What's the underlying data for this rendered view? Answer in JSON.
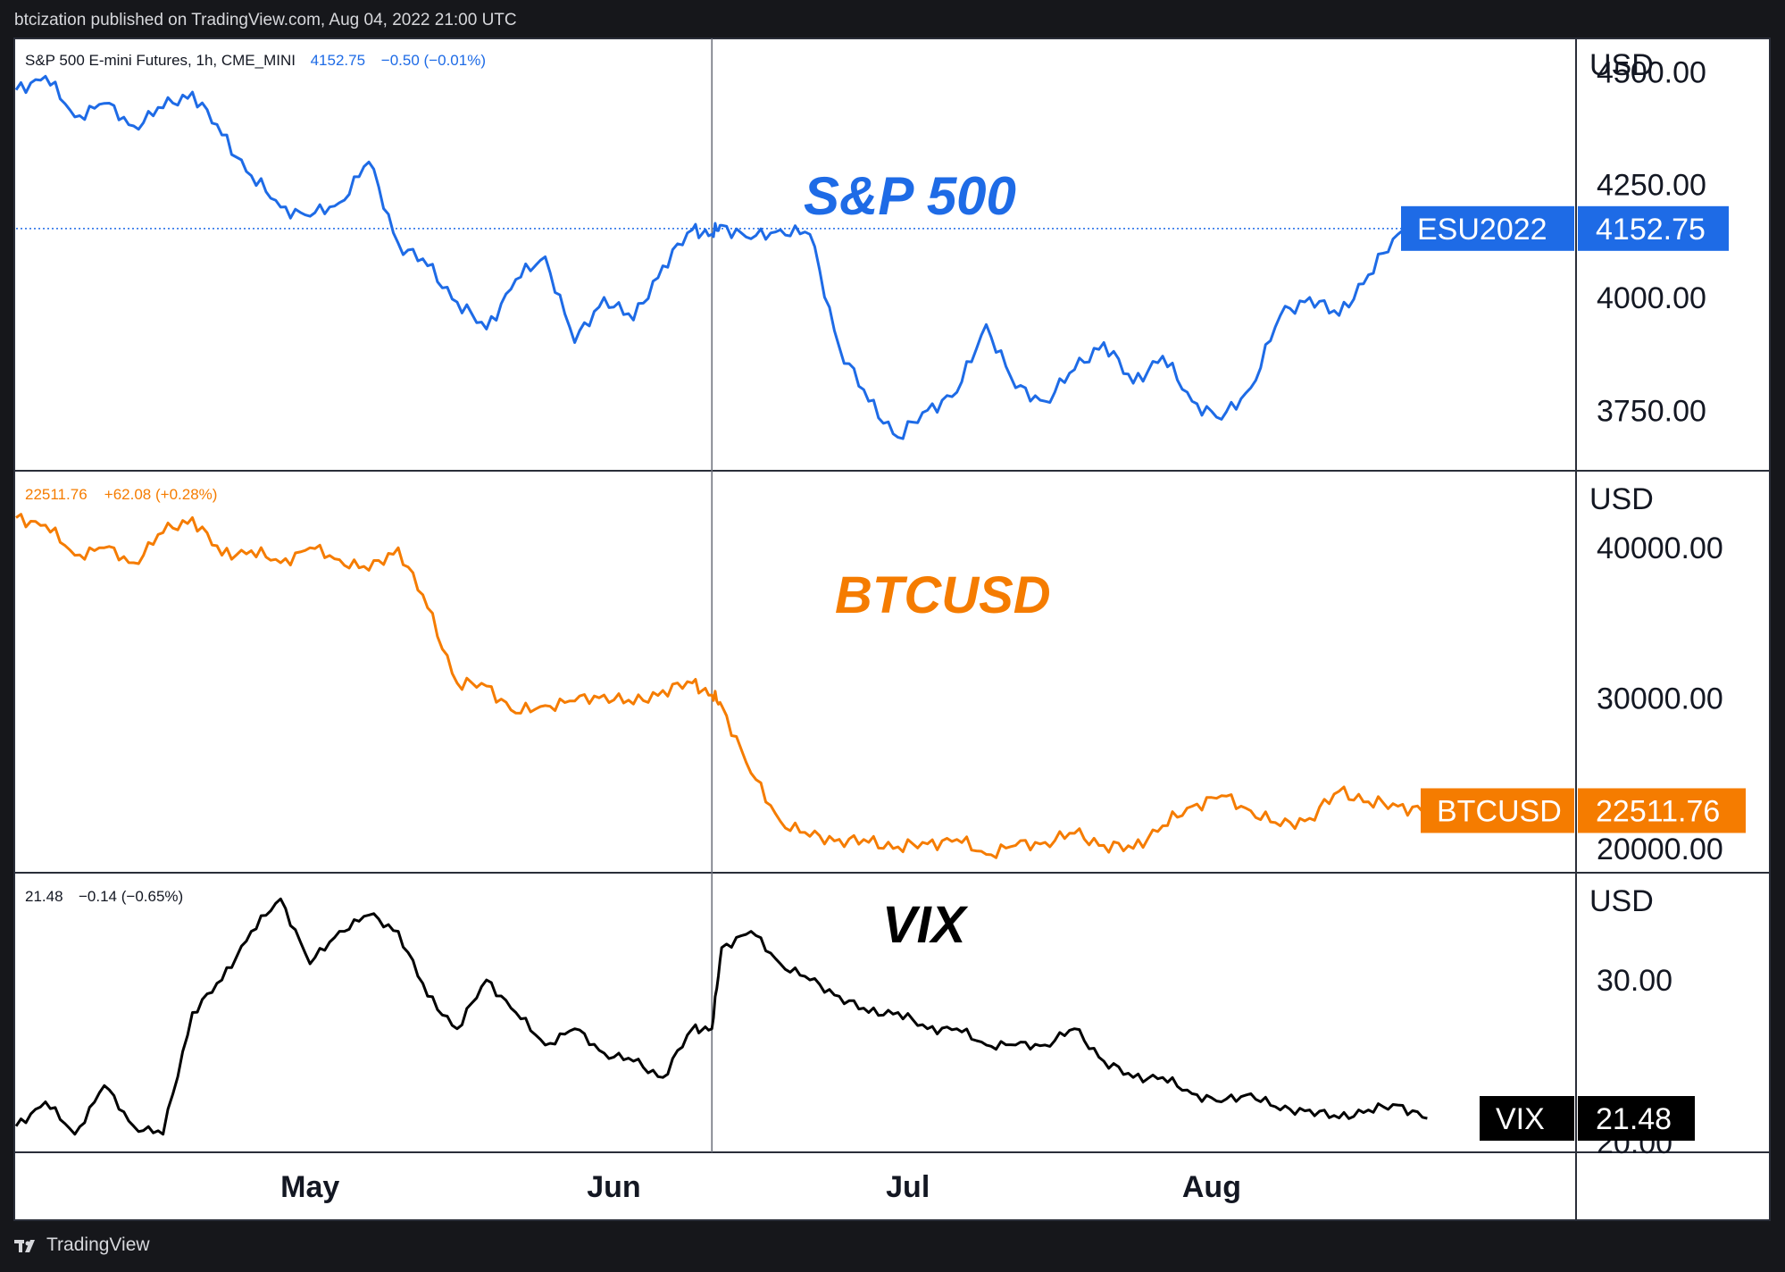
{
  "header": {
    "publisher_text": "btcization published on TradingView.com, Aug 04, 2022 21:00 UTC"
  },
  "footer": {
    "brand": "TradingView"
  },
  "colors": {
    "sp500": "#1e6be6",
    "btc": "#f57c00",
    "vix": "#000000",
    "grid": "#2a2e39",
    "text": "#131722"
  },
  "x_axis": {
    "labels": [
      "May",
      "Jun",
      "Jul",
      "Aug"
    ],
    "label_days": [
      30,
      61,
      91,
      122
    ]
  },
  "divider_day": 71,
  "panes": [
    {
      "id": "sp500",
      "header_title": "S&P 500 E-mini Futures, 1h, CME_MINI",
      "header_value": "4152.75",
      "header_change": "−0.50 (−0.01%)",
      "overlay_label": "S&P 500",
      "currency": "USD",
      "ticks": [
        "4500.00",
        "4250.00",
        "4000.00",
        "3750.00"
      ],
      "tick_values": [
        4500,
        4250,
        4000,
        3750
      ],
      "tag_symbol": "ESU2022",
      "tag_value": "4152.75",
      "last_value": 4152.75
    },
    {
      "id": "btc",
      "header_title": "",
      "header_value": "22511.76",
      "header_change": "+62.08 (+0.28%)",
      "overlay_label": "BTCUSD",
      "currency": "USD",
      "ticks": [
        "40000.00",
        "30000.00",
        "20000.00"
      ],
      "tick_values": [
        40000,
        30000,
        20000
      ],
      "tag_symbol": "BTCUSD",
      "tag_value": "22511.76",
      "last_value": 22511.76
    },
    {
      "id": "vix",
      "header_title": "",
      "header_value": "21.48",
      "header_change": "−0.14 (−0.65%)",
      "overlay_label": "VIX",
      "currency": "USD",
      "ticks": [
        "30.00",
        "20.00"
      ],
      "tick_values": [
        30,
        20
      ],
      "tag_symbol": "VIX",
      "tag_value": "21.48",
      "last_value": 21.48
    }
  ],
  "chart_data": [
    {
      "type": "line",
      "title": "S&P 500 E-mini Futures, 1h, CME_MINI",
      "series": [
        {
          "name": "S&P 500",
          "x_day": [
            0,
            3,
            6,
            9,
            12,
            15,
            18,
            21,
            24,
            27,
            30,
            33,
            36,
            39,
            42,
            45,
            48,
            51,
            54,
            57,
            60,
            63,
            66,
            69,
            71,
            72,
            75,
            78,
            81,
            84,
            87,
            90,
            93,
            96,
            99,
            102,
            105,
            108,
            111,
            114,
            117,
            120,
            123,
            126,
            129,
            132,
            135,
            138,
            141,
            144
          ],
          "values": [
            4460,
            4490,
            4400,
            4430,
            4380,
            4420,
            4455,
            4360,
            4270,
            4200,
            4180,
            4210,
            4300,
            4120,
            4070,
            3990,
            3930,
            4040,
            4090,
            3900,
            4000,
            3950,
            4070,
            4150,
            4140,
            4160,
            4130,
            4150,
            4140,
            3890,
            3770,
            3690,
            3750,
            3790,
            3940,
            3800,
            3770,
            3840,
            3900,
            3810,
            3870,
            3770,
            3730,
            3800,
            3960,
            4000,
            3960,
            4050,
            4140,
            4152.75
          ]
        }
      ],
      "xlabel": "",
      "ylabel": "USD",
      "ylim": [
        3620,
        4570
      ]
    },
    {
      "type": "line",
      "series": [
        {
          "name": "BTCUSD",
          "x_day": [
            0,
            3,
            6,
            9,
            12,
            15,
            18,
            21,
            24,
            27,
            30,
            33,
            36,
            39,
            42,
            45,
            48,
            51,
            54,
            57,
            60,
            63,
            66,
            69,
            71,
            72,
            75,
            78,
            81,
            84,
            87,
            90,
            93,
            96,
            99,
            102,
            105,
            108,
            111,
            114,
            117,
            120,
            123,
            126,
            129,
            132,
            135,
            138,
            141,
            144
          ],
          "values": [
            42000,
            41500,
            39500,
            40000,
            39000,
            41000,
            42000,
            39500,
            39800,
            39000,
            40000,
            39200,
            38500,
            40000,
            36000,
            31000,
            30800,
            29000,
            29500,
            29800,
            30200,
            29600,
            30500,
            31000,
            30200,
            29500,
            25000,
            21800,
            20800,
            20600,
            20400,
            20100,
            20300,
            20600,
            19600,
            20200,
            20400,
            21000,
            20200,
            20000,
            21500,
            22800,
            23500,
            22500,
            21500,
            22000,
            23800,
            23100,
            22800,
            22511.76
          ]
        }
      ],
      "xlabel": "",
      "ylabel": "USD",
      "ylim": [
        18500,
        45000
      ]
    },
    {
      "type": "line",
      "series": [
        {
          "name": "VIX",
          "x_day": [
            0,
            3,
            6,
            9,
            12,
            15,
            18,
            21,
            24,
            27,
            30,
            33,
            36,
            39,
            42,
            45,
            48,
            51,
            54,
            57,
            60,
            63,
            66,
            69,
            71,
            72,
            75,
            78,
            81,
            84,
            87,
            90,
            93,
            96,
            99,
            102,
            105,
            108,
            111,
            114,
            117,
            120,
            123,
            126,
            129,
            132,
            135,
            138,
            141,
            144
          ],
          "values": [
            21,
            22.5,
            20.5,
            23.5,
            21,
            20.5,
            28,
            30,
            33,
            35,
            31,
            33,
            34,
            33,
            29,
            27,
            30,
            28,
            26,
            27,
            25.5,
            25,
            24,
            27,
            27,
            32,
            33,
            31,
            30,
            29,
            28,
            28,
            27,
            27,
            26,
            26,
            26,
            27,
            25,
            24,
            24,
            23,
            22.5,
            23,
            22,
            22,
            21.5,
            22,
            22.3,
            21.48
          ]
        }
      ],
      "xlabel": "",
      "ylabel": "USD",
      "ylim": [
        19.5,
        36.5
      ]
    }
  ]
}
